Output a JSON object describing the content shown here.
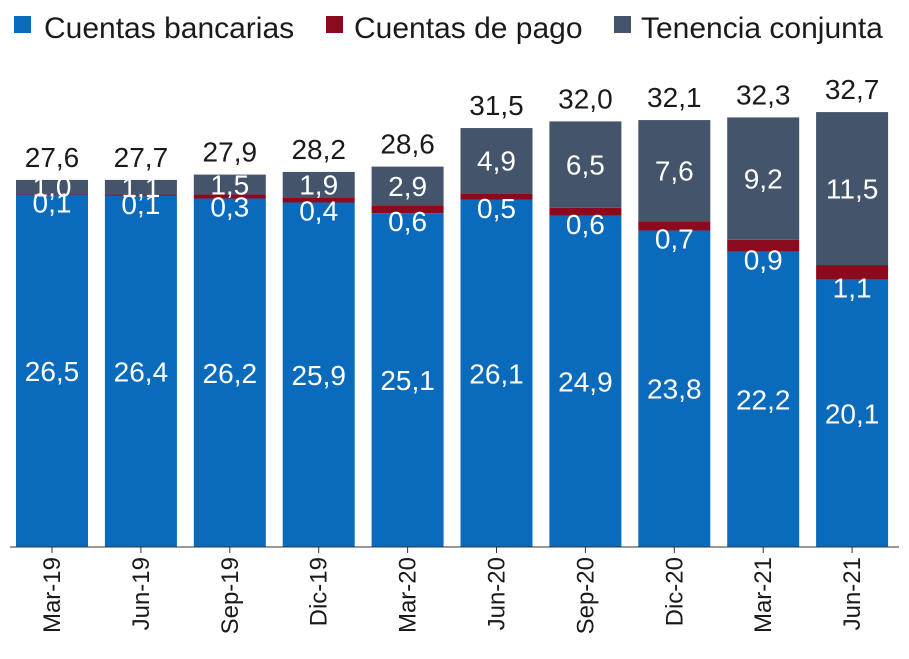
{
  "chart_data": {
    "type": "bar",
    "stacked": true,
    "title": "",
    "xlabel": "",
    "ylabel": "",
    "ylim": [
      0,
      32.7
    ],
    "categories": [
      "Mar-19",
      "Jun-19",
      "Sep-19",
      "Dic-19",
      "Mar-20",
      "Jun-20",
      "Sep-20",
      "Dic-20",
      "Mar-21",
      "Jun-21"
    ],
    "series": [
      {
        "name": "Cuentas bancarias",
        "color": "#0a6bbd",
        "values": [
          26.5,
          26.4,
          26.2,
          25.9,
          25.1,
          26.1,
          24.9,
          23.8,
          22.2,
          20.1
        ],
        "labels": [
          "26,5",
          "26,4",
          "26,2",
          "25,9",
          "25,1",
          "26,1",
          "24,9",
          "23,8",
          "22,2",
          "20,1"
        ]
      },
      {
        "name": "Cuentas de pago",
        "color": "#8b0a1e",
        "values": [
          0.1,
          0.1,
          0.3,
          0.4,
          0.6,
          0.5,
          0.6,
          0.7,
          0.9,
          1.1
        ],
        "labels": [
          "0,1",
          "0,1",
          "0,3",
          "0,4",
          "0,6",
          "0,5",
          "0,6",
          "0,7",
          "0,9",
          "1,1"
        ]
      },
      {
        "name": "Tenencia conjunta",
        "color": "#44546a",
        "values": [
          1.0,
          1.1,
          1.5,
          1.9,
          2.9,
          4.9,
          6.5,
          7.6,
          9.2,
          11.5
        ],
        "labels": [
          "1,0",
          "1,1",
          "1,5",
          "1,9",
          "2,9",
          "4,9",
          "6,5",
          "7,6",
          "9,2",
          "11,5"
        ]
      }
    ],
    "totals": [
      27.6,
      27.7,
      27.9,
      28.2,
      28.6,
      31.5,
      32.0,
      32.1,
      32.3,
      32.7
    ],
    "total_labels": [
      "27,6",
      "27,7",
      "27,9",
      "28,2",
      "28,6",
      "31,5",
      "32,0",
      "32,1",
      "32,3",
      "32,7"
    ],
    "legend": [
      "Cuentas bancarias",
      "Cuentas de pago",
      "Tenencia conjunta"
    ],
    "legend_position": "top"
  }
}
